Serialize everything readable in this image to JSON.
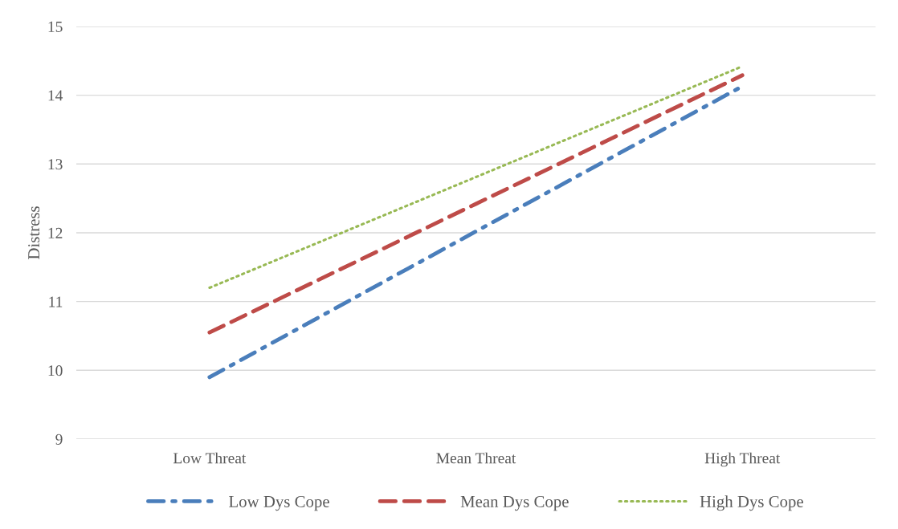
{
  "chart_data": {
    "type": "line",
    "ylabel": "Distress",
    "categories": [
      "Low Threat",
      "Mean Threat",
      "High Threat"
    ],
    "series": [
      {
        "name": "Low Dys Cope",
        "color": "#4a7ebb",
        "line_style": "dashdot",
        "values": [
          9.9,
          12.02,
          14.13
        ]
      },
      {
        "name": "Mean Dys Cope",
        "color": "#be4b48",
        "line_style": "dashed",
        "values": [
          10.55,
          12.42,
          14.29
        ]
      },
      {
        "name": "High Dys Cope",
        "color": "#98b954",
        "line_style": "dotted",
        "values": [
          11.2,
          12.81,
          14.42
        ]
      }
    ],
    "ylim": [
      9,
      15
    ],
    "yticks": [
      9,
      10,
      11,
      12,
      13,
      14,
      15
    ],
    "grid": "y",
    "legend": "bottom",
    "marker": "none"
  }
}
